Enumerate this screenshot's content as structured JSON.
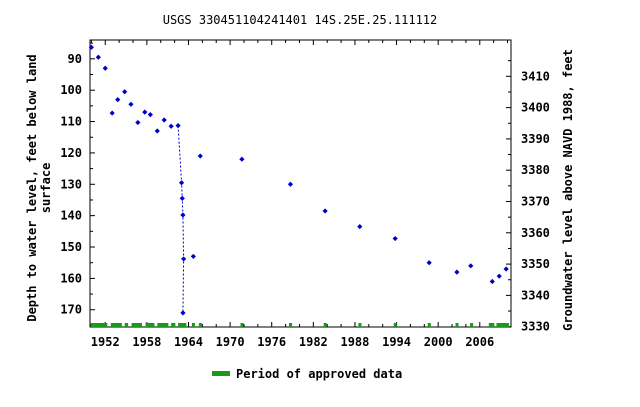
{
  "chart_data": {
    "type": "scatter",
    "title": "USGS 330451104241401 14S.25E.25.111112",
    "ylabel_left": [
      "Depth to water level, feet below land",
      "surface"
    ],
    "ylabel_right": "Groundwater level above NAVD 1988, feet",
    "x_ticks": [
      "1952",
      "1958",
      "1964",
      "1970",
      "1976",
      "1982",
      "1988",
      "1994",
      "2000",
      "2006"
    ],
    "x_tick_values": [
      1952,
      1958,
      1964,
      1970,
      1976,
      1982,
      1988,
      1994,
      2000,
      2006
    ],
    "xlim": [
      1949.8,
      2010.5
    ],
    "y_left_ticks": [
      "90",
      "100",
      "110",
      "120",
      "130",
      "140",
      "150",
      "160",
      "170"
    ],
    "y_left_tick_values": [
      90,
      100,
      110,
      120,
      130,
      140,
      150,
      160,
      170
    ],
    "ylim_left": [
      84,
      175.5
    ],
    "y_right_ticks": [
      "3410",
      "3400",
      "3390",
      "3380",
      "3370",
      "3360",
      "3350",
      "3340",
      "3330"
    ],
    "y_right_tick_values": [
      3410,
      3400,
      3390,
      3380,
      3370,
      3360,
      3350,
      3340,
      3330
    ],
    "ylim_right": [
      3421.6,
      3329.9
    ],
    "series_color": "#0000cc",
    "points": [
      {
        "x": 1950.0,
        "y": 86.3
      },
      {
        "x": 1951.0,
        "y": 89.5
      },
      {
        "x": 1952.0,
        "y": 93.0
      },
      {
        "x": 1953.0,
        "y": 107.3
      },
      {
        "x": 1953.8,
        "y": 103.0
      },
      {
        "x": 1954.8,
        "y": 100.5
      },
      {
        "x": 1955.7,
        "y": 104.5
      },
      {
        "x": 1956.7,
        "y": 110.3
      },
      {
        "x": 1957.7,
        "y": 107.0
      },
      {
        "x": 1958.5,
        "y": 107.8
      },
      {
        "x": 1959.5,
        "y": 113.0
      },
      {
        "x": 1960.5,
        "y": 109.5
      },
      {
        "x": 1961.5,
        "y": 111.5
      },
      {
        "x": 1962.5,
        "y": 111.3
      },
      {
        "x": 1963.0,
        "y": 129.5
      },
      {
        "x": 1963.1,
        "y": 134.5
      },
      {
        "x": 1963.2,
        "y": 139.8
      },
      {
        "x": 1963.3,
        "y": 153.8
      },
      {
        "x": 1963.2,
        "y": 171.0
      },
      {
        "x": 1964.7,
        "y": 153.0
      },
      {
        "x": 1965.7,
        "y": 121.0
      },
      {
        "x": 1971.7,
        "y": 122.0
      },
      {
        "x": 1978.7,
        "y": 130.0
      },
      {
        "x": 1983.7,
        "y": 138.5
      },
      {
        "x": 1988.7,
        "y": 143.5
      },
      {
        "x": 1993.8,
        "y": 147.3
      },
      {
        "x": 1998.7,
        "y": 155.0
      },
      {
        "x": 2002.7,
        "y": 158.0
      },
      {
        "x": 2004.7,
        "y": 156.0
      },
      {
        "x": 2007.8,
        "y": 161.0
      },
      {
        "x": 2008.8,
        "y": 159.3
      },
      {
        "x": 2009.8,
        "y": 157.0
      }
    ],
    "dashed_segment": [
      {
        "x": 1962.5,
        "y": 111.3
      },
      {
        "x": 1963.0,
        "y": 129.5
      },
      {
        "x": 1963.1,
        "y": 134.5
      },
      {
        "x": 1963.2,
        "y": 139.8
      },
      {
        "x": 1963.3,
        "y": 153.8
      },
      {
        "x": 1963.2,
        "y": 171.0
      }
    ],
    "approved_color": "#1a9a1a",
    "approved_periods": [
      [
        1949.9,
        1952.3
      ],
      [
        1952.8,
        1954.4
      ],
      [
        1954.8,
        1955.3
      ],
      [
        1955.8,
        1957.3
      ],
      [
        1957.8,
        1959.1
      ],
      [
        1959.5,
        1961.1
      ],
      [
        1961.5,
        1962.1
      ],
      [
        1962.5,
        1963.7
      ],
      [
        1964.5,
        1964.9
      ],
      [
        1965.5,
        1965.9
      ],
      [
        1971.5,
        1971.9
      ],
      [
        1978.5,
        1978.9
      ],
      [
        1983.5,
        1983.9
      ],
      [
        1988.5,
        1988.9
      ],
      [
        1993.6,
        1994.0
      ],
      [
        1998.5,
        1998.9
      ],
      [
        2002.5,
        2002.9
      ],
      [
        2004.6,
        2005.0
      ],
      [
        2007.3,
        2008.1
      ],
      [
        2008.4,
        2010.2
      ]
    ],
    "legend_label": "Period of approved data",
    "legend_position": "bottom-center",
    "grid": false
  }
}
